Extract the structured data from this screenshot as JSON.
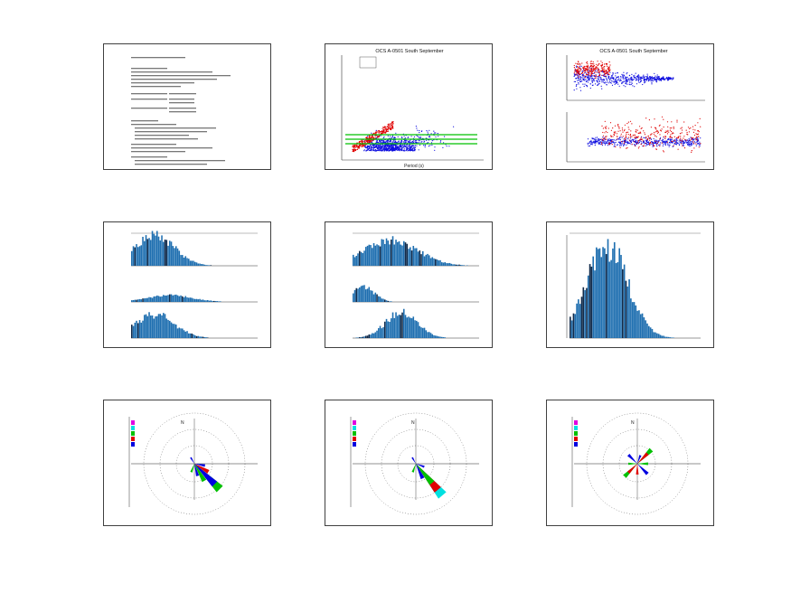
{
  "thumbnails": [
    {
      "id": 1,
      "kind": "text-slide"
    },
    {
      "id": 2,
      "kind": "scatter",
      "title": "OCS A-0501 South September",
      "xlabel": "Period (s)"
    },
    {
      "id": 3,
      "kind": "scatter-pair",
      "title": "OCS A-0501 South September"
    },
    {
      "id": 4,
      "kind": "histogram-stack"
    },
    {
      "id": 5,
      "kind": "histogram-stack"
    },
    {
      "id": 6,
      "kind": "histogram-single"
    },
    {
      "id": 7,
      "kind": "wind-rose",
      "label_n": "N"
    },
    {
      "id": 8,
      "kind": "wind-rose",
      "label_n": "N"
    },
    {
      "id": 9,
      "kind": "wind-rose",
      "label_n": "N"
    }
  ],
  "colors": {
    "frame": "#404040",
    "red_points": "#e00000",
    "blue_points": "#1010e0",
    "green_lines": "#00c000",
    "bar_blue": "#1f6fb0",
    "bar_dark": "#102a4a",
    "bar_red": "#c03030",
    "rose_cyan": "#00e0e0",
    "rose_magenta": "#e000e0",
    "rose_green": "#00c000",
    "rose_red": "#e00000",
    "rose_blue": "#0000e0"
  }
}
